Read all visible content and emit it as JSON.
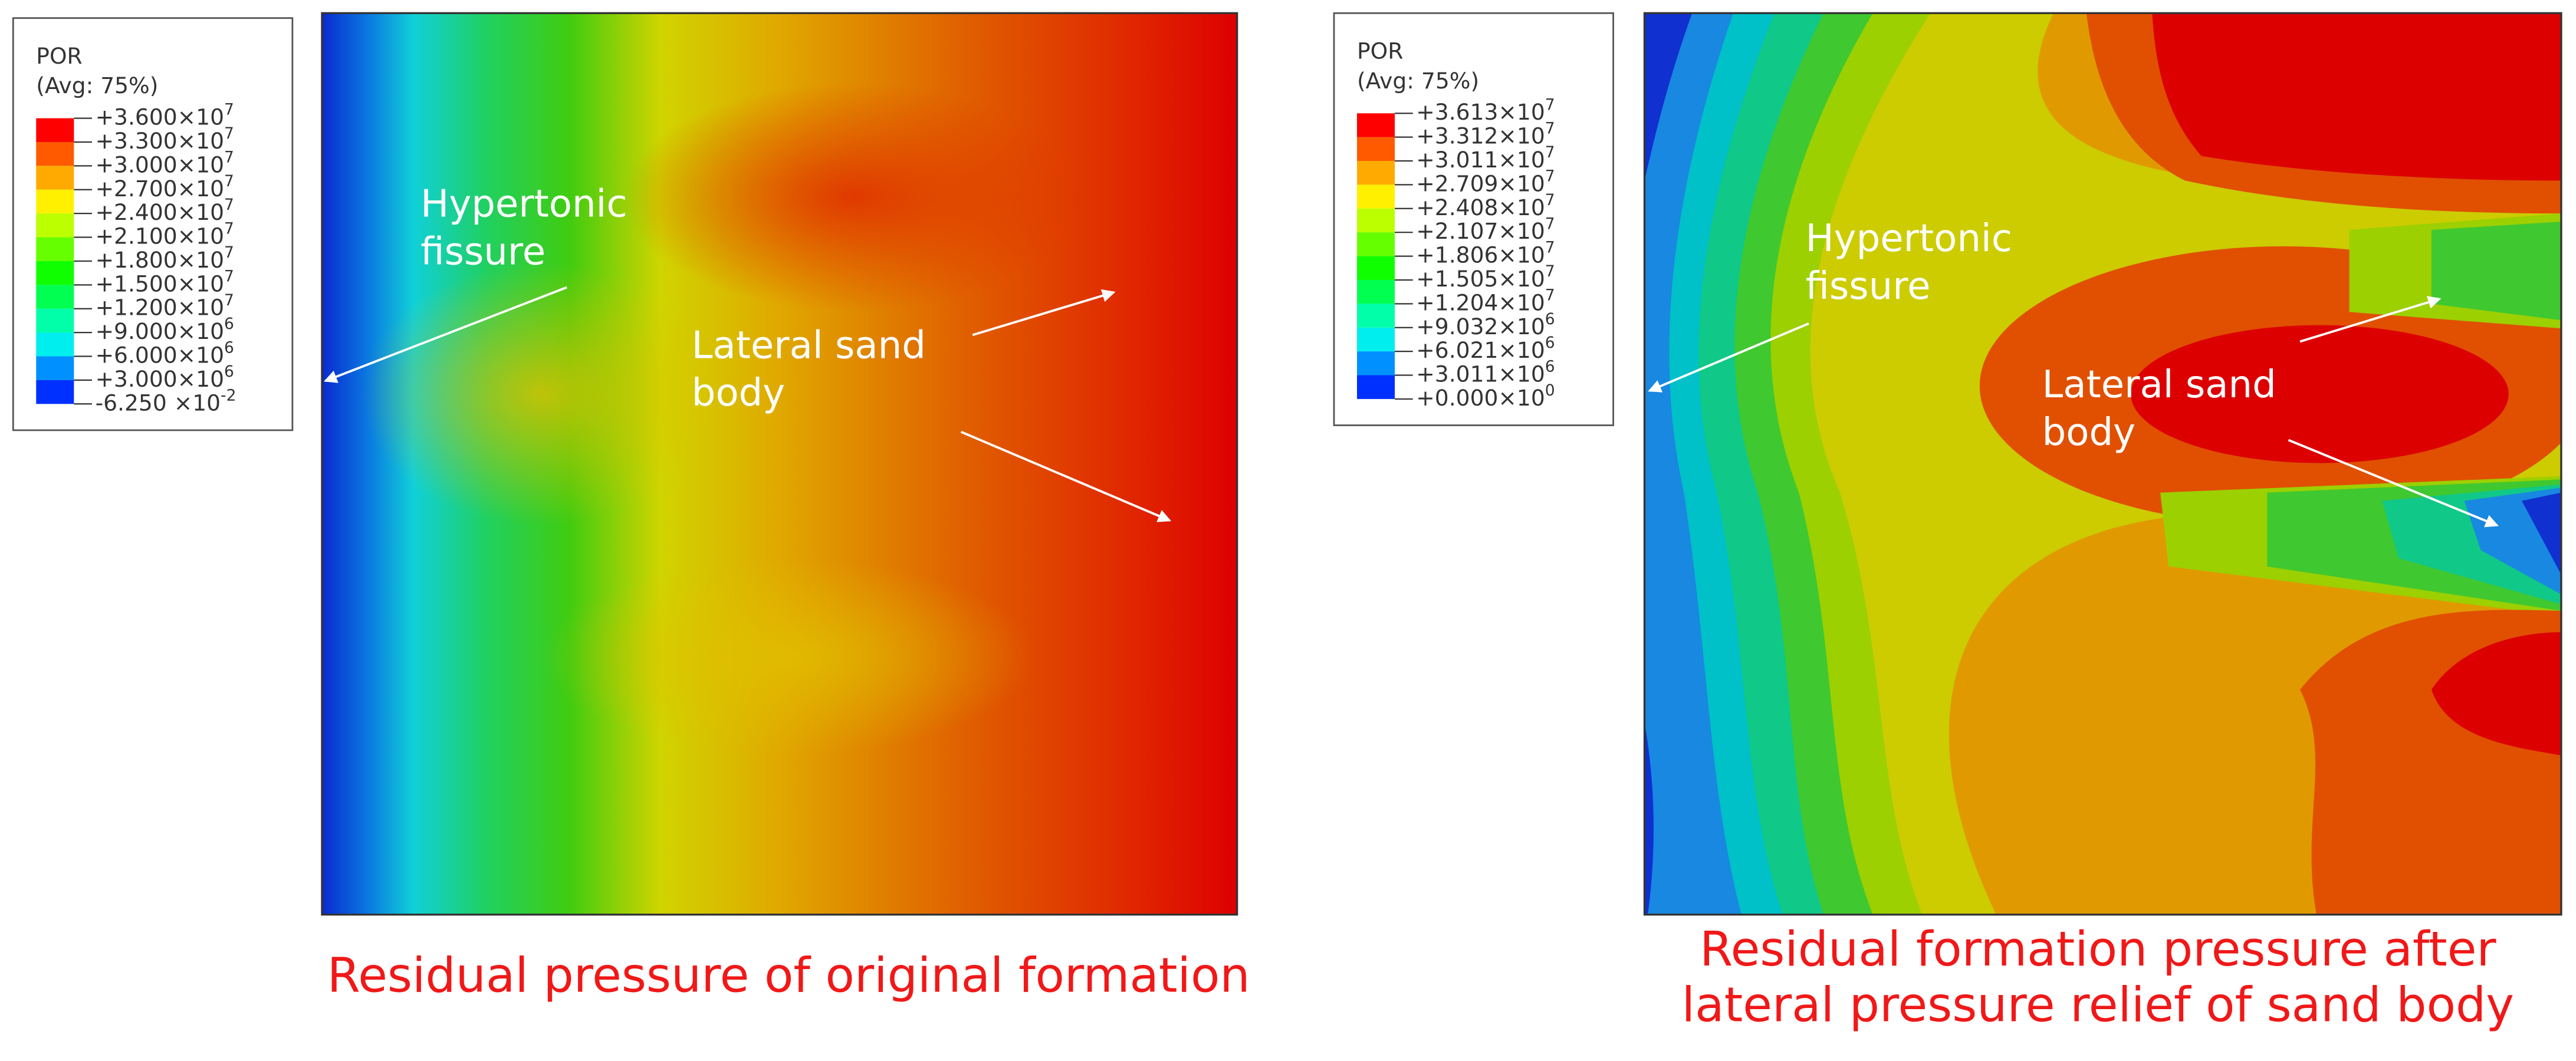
{
  "panels": [
    {
      "legend": {
        "title": "POR",
        "subtitle": "(Avg: 75%)",
        "colors": [
          "#ff0000",
          "#ff5a00",
          "#ffaa00",
          "#fff000",
          "#bcff00",
          "#66ff00",
          "#10ff00",
          "#00ff50",
          "#00ffa8",
          "#00eeee",
          "#0090ff",
          "#0030ff"
        ],
        "labels": [
          {
            "base": "+3.600×10",
            "exp": "7"
          },
          {
            "base": "+3.300×10",
            "exp": "7"
          },
          {
            "base": "+3.000×10",
            "exp": "7"
          },
          {
            "base": "+2.700×10",
            "exp": "7"
          },
          {
            "base": "+2.400×10",
            "exp": "7"
          },
          {
            "base": "+2.100×10",
            "exp": "7"
          },
          {
            "base": "+1.800×10",
            "exp": "7"
          },
          {
            "base": "+1.500×10",
            "exp": "7"
          },
          {
            "base": "+1.200×10",
            "exp": "7"
          },
          {
            "base": "+9.000×10",
            "exp": "6"
          },
          {
            "base": "+6.000×10",
            "exp": "6"
          },
          {
            "base": "+3.000×10",
            "exp": "6"
          },
          {
            "base": "-6.250 ×10",
            "exp": "-2"
          }
        ]
      },
      "annotations": [
        [
          "Hypertonic",
          "fissure"
        ],
        [
          "Lateral sand",
          "body"
        ]
      ],
      "caption": [
        "Residual pressure of original formation"
      ]
    },
    {
      "legend": {
        "title": "POR",
        "subtitle": "(Avg: 75%)",
        "colors": [
          "#ff0000",
          "#ff5a00",
          "#ffaa00",
          "#fff000",
          "#bcff00",
          "#66ff00",
          "#10ff00",
          "#00ff50",
          "#00ffa8",
          "#00eeee",
          "#0090ff",
          "#0030ff"
        ],
        "labels": [
          {
            "base": "+3.613×10",
            "exp": "7"
          },
          {
            "base": "+3.312×10",
            "exp": "7"
          },
          {
            "base": "+3.011×10",
            "exp": "7"
          },
          {
            "base": "+2.709×10",
            "exp": "7"
          },
          {
            "base": "+2.408×10",
            "exp": "7"
          },
          {
            "base": "+2.107×10",
            "exp": "7"
          },
          {
            "base": "+1.806×10",
            "exp": "7"
          },
          {
            "base": "+1.505×10",
            "exp": "7"
          },
          {
            "base": "+1.204×10",
            "exp": "7"
          },
          {
            "base": "+9.032×10",
            "exp": "6"
          },
          {
            "base": "+6.021×10",
            "exp": "6"
          },
          {
            "base": "+3.011×10",
            "exp": "6"
          },
          {
            "base": "+0.000×10",
            "exp": "0"
          }
        ]
      },
      "annotations": [
        [
          "Hypertonic",
          "fissure"
        ],
        [
          "Lateral sand",
          "body"
        ]
      ],
      "caption": [
        "Residual formation pressure after",
        "lateral pressure relief of sand body"
      ]
    }
  ]
}
